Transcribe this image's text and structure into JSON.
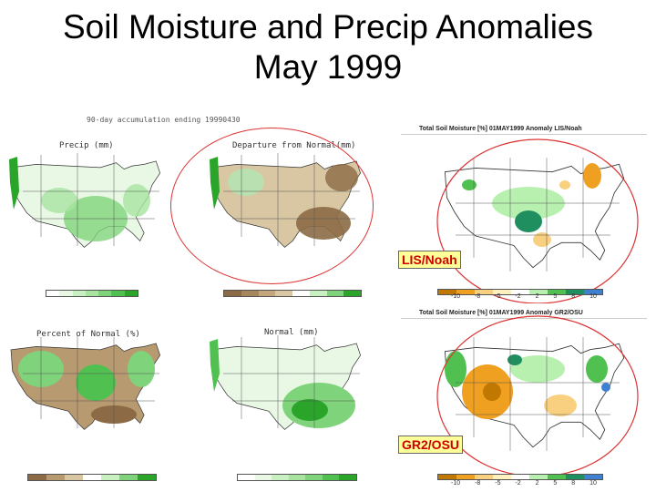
{
  "title_line1": "Soil Moisture and Precip Anomalies",
  "title_line2": "May 1999",
  "left_header": "90-day accumulation ending 19990430",
  "panels": {
    "precip": "Precip (mm)",
    "departure": "Departure from Normal(mm)",
    "percent": "Percent of Normal (%)",
    "normal": "Normal (mm)"
  },
  "right_top": {
    "header": "Total Soil Moisture [%] 01MAY1999 Anomaly LIS/Noah",
    "label": "LIS/Noah",
    "ticks": [
      "-10",
      "-8",
      "-5",
      "-2",
      "2",
      "5",
      "8",
      "10"
    ]
  },
  "right_bottom": {
    "header": "Total Soil Moisture [%] 01MAY1999 Anomaly GR2/OSU",
    "label": "GR2/OSU",
    "ticks": [
      "-10",
      "-8",
      "-5",
      "-2",
      "2",
      "5",
      "8",
      "10"
    ]
  },
  "colors": {
    "dry_dark": "#8b6a45",
    "dry": "#b89a70",
    "dry_light": "#d9c7a3",
    "wet_light": "#c8f0c0",
    "wet": "#7fd37a",
    "wet_dark": "#2aa52a",
    "anom_neg_dark": "#c07800",
    "anom_neg": "#f0a020",
    "anom_neg_light": "#f8d080",
    "anom_pos_light": "#b8f0b0",
    "anom_pos": "#50c050",
    "anom_pos_dark": "#1f8f5f",
    "anom_blue": "#4080d0",
    "ring": "#dd3333",
    "label_bg": "#ffff99",
    "label_text": "#cc0000"
  }
}
